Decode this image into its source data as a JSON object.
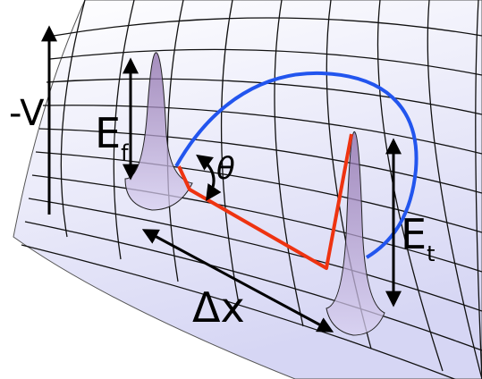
{
  "labels": {
    "potential": "-V",
    "final_energy": "E",
    "final_sub": "f",
    "angle": "θ",
    "transition_energy": "E",
    "transition_sub": "t",
    "separation": "Δx"
  }
}
